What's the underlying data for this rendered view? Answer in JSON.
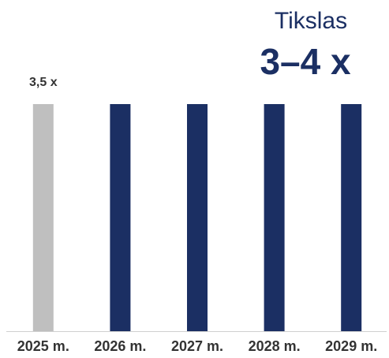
{
  "chart_data": {
    "type": "bar",
    "categories": [
      "2025 m.",
      "2026 m.",
      "2027 m.",
      "2028 m.",
      "2029 m."
    ],
    "values": [
      3.5,
      3.5,
      3.5,
      3.5,
      3.5
    ],
    "value_labels": [
      "3,5 x",
      null,
      null,
      null,
      null
    ],
    "colors": [
      "#bfbfbf",
      "#1b2f63",
      "#1b2f63",
      "#1b2f63",
      "#1b2f63"
    ],
    "ylim": [
      0,
      3.5
    ],
    "annotations": [
      "Tikslas",
      "3–4 x"
    ]
  }
}
